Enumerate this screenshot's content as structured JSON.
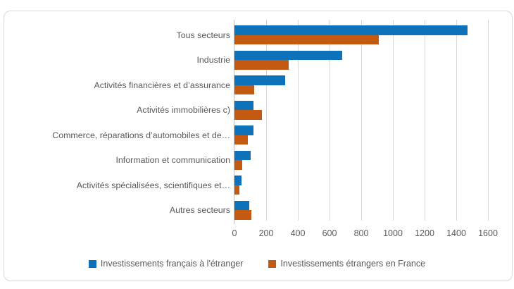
{
  "chart_data": {
    "type": "bar",
    "orientation": "horizontal",
    "title": "",
    "categories": [
      "Tous secteurs",
      "Industrie",
      "Activités financières et d’assurance",
      "Activités immobilières c)",
      "Commerce, réparations d’automobiles et de…",
      "Information et communication",
      "Activités spécialisées, scientifiques et…",
      "Autres secteurs"
    ],
    "series": [
      {
        "name": "Investissements français à l'étranger",
        "color": "#0E72BA",
        "values": [
          1470,
          680,
          320,
          120,
          120,
          100,
          45,
          95
        ]
      },
      {
        "name": "Investissements étrangers en France",
        "color": "#C45A11",
        "values": [
          910,
          340,
          125,
          175,
          85,
          50,
          30,
          105
        ]
      }
    ],
    "xlim": [
      0,
      1600
    ],
    "xticks": [
      0,
      200,
      400,
      600,
      800,
      1000,
      1200,
      1400,
      1600
    ],
    "grid": true,
    "legend_position": "bottom"
  },
  "style": {
    "gridline_color": "#D9D9D9",
    "axis_color": "#BFBFBF",
    "text_color": "#595959",
    "frame_border_color": "#D9D9D9"
  }
}
